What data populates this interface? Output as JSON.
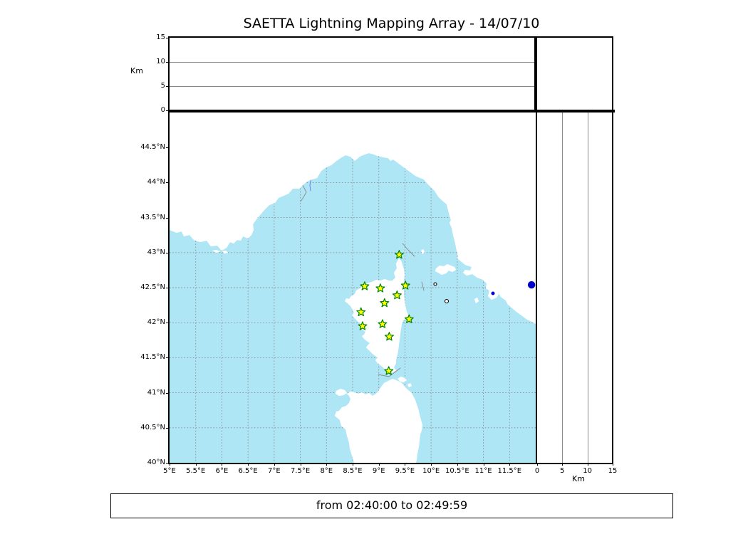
{
  "title": "SAETTA Lightning Mapping Array - 14/07/10",
  "footer": {
    "time_range": "from 02:40:00 to 02:49:59"
  },
  "colors": {
    "sea": "#aee6f5",
    "land": "#ffffff",
    "coast": "#000000",
    "river": "#7878ee",
    "country_border": "#909090",
    "grid": "#8a8a8a",
    "station_fill": "#ffff00",
    "station_stroke": "#008000",
    "source_dot": "#0000cc",
    "lake": "#151560"
  },
  "chart_data": {
    "type": "scatter",
    "title": "SAETTA Lightning Mapping Array - 14/07/10",
    "map": {
      "lon_range": [
        5,
        12
      ],
      "lat_range": [
        40,
        45
      ],
      "lon_ticks": [
        {
          "value": 5,
          "label": "5°E"
        },
        {
          "value": 5.5,
          "label": "5.5°E"
        },
        {
          "value": 6,
          "label": "6°E"
        },
        {
          "value": 6.5,
          "label": "6.5°E"
        },
        {
          "value": 7,
          "label": "7°E"
        },
        {
          "value": 7.5,
          "label": "7.5°E"
        },
        {
          "value": 8,
          "label": "8°E"
        },
        {
          "value": 8.5,
          "label": "8.5°E"
        },
        {
          "value": 9,
          "label": "9°E"
        },
        {
          "value": 9.5,
          "label": "9.5°E"
        },
        {
          "value": 10,
          "label": "10°E"
        },
        {
          "value": 10.5,
          "label": "10.5°E"
        },
        {
          "value": 11,
          "label": "11°E"
        },
        {
          "value": 11.5,
          "label": "11.5°E"
        }
      ],
      "lat_ticks": [
        {
          "value": 44.5,
          "label": "44.5°N"
        },
        {
          "value": 44,
          "label": "44°N"
        },
        {
          "value": 43.5,
          "label": "43.5°N"
        },
        {
          "value": 43,
          "label": "43°N"
        },
        {
          "value": 42.5,
          "label": "42.5°N"
        },
        {
          "value": 42,
          "label": "42°N"
        },
        {
          "value": 41.5,
          "label": "41.5°N"
        },
        {
          "value": 41,
          "label": "41°N"
        },
        {
          "value": 40.5,
          "label": "40.5°N"
        },
        {
          "value": 40,
          "label": "40°N"
        }
      ],
      "lon_grid": [
        5.5,
        6,
        6.5,
        7,
        7.5,
        8,
        8.5,
        9,
        9.5,
        10,
        10.5,
        11,
        11.5
      ],
      "lat_grid": [
        40.5,
        41,
        41.5,
        42,
        42.5,
        43,
        43.5,
        44,
        44.5
      ],
      "grid_on": true
    },
    "panels": {
      "top": {
        "label": "Km",
        "range": [
          0,
          15
        ],
        "ticks": [
          0,
          5,
          10,
          15
        ],
        "gridlines": [
          5,
          10
        ]
      },
      "right": {
        "label": "Km",
        "range": [
          0,
          15
        ],
        "ticks": [
          0,
          5,
          10,
          15
        ],
        "gridlines": [
          5,
          10
        ]
      }
    },
    "stations": [
      {
        "lon": 9.39,
        "lat": 42.97
      },
      {
        "lon": 8.73,
        "lat": 42.52
      },
      {
        "lon": 9.03,
        "lat": 42.49
      },
      {
        "lon": 9.51,
        "lat": 42.53
      },
      {
        "lon": 9.35,
        "lat": 42.39
      },
      {
        "lon": 9.11,
        "lat": 42.28
      },
      {
        "lon": 8.66,
        "lat": 42.15
      },
      {
        "lon": 9.58,
        "lat": 42.05
      },
      {
        "lon": 9.07,
        "lat": 41.98
      },
      {
        "lon": 8.69,
        "lat": 41.95
      },
      {
        "lon": 9.2,
        "lat": 41.8
      },
      {
        "lon": 9.19,
        "lat": 41.31
      }
    ],
    "sources": [
      {
        "lon": 11.92,
        "lat": 42.54
      }
    ]
  }
}
